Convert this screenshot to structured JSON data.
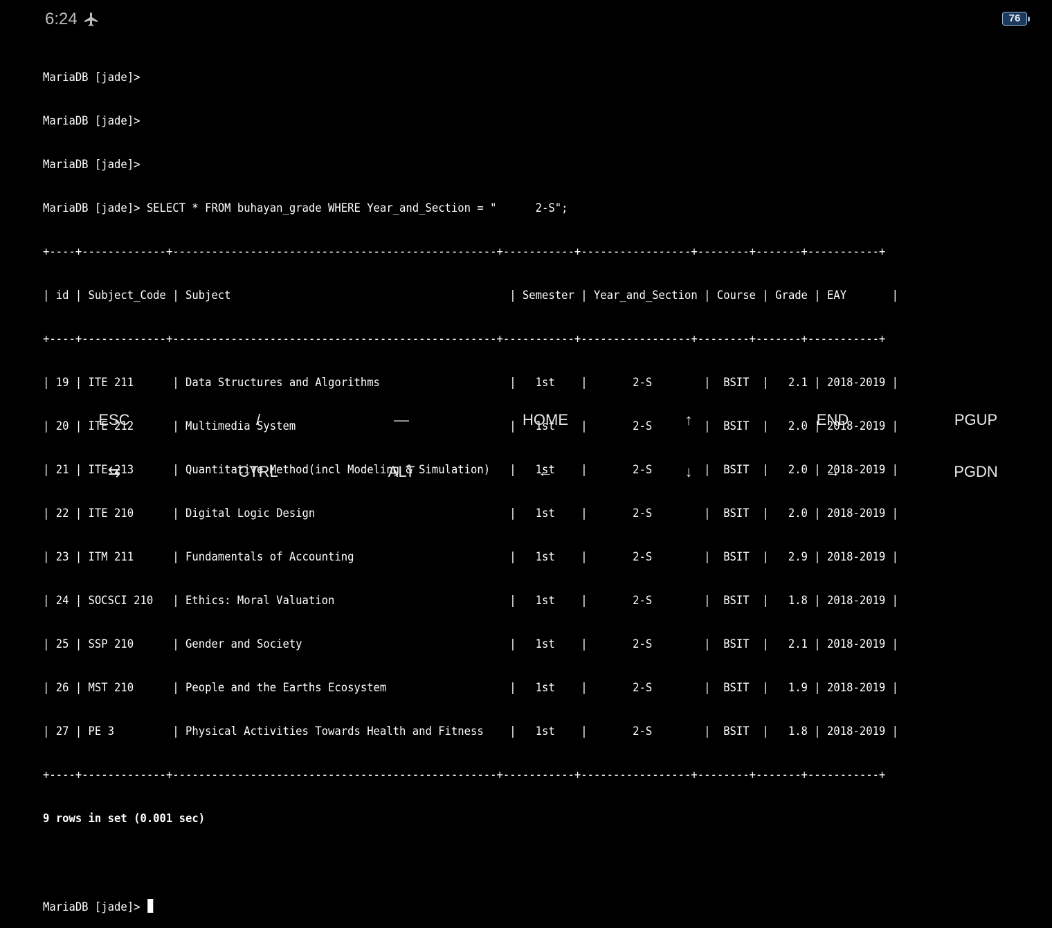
{
  "status": {
    "time": "6:24",
    "battery": "76",
    "airplane_icon": "airplane-icon"
  },
  "terminal": {
    "prompts": [
      "MariaDB [jade]>",
      "MariaDB [jade]>",
      "MariaDB [jade]>"
    ],
    "query_line": "MariaDB [jade]> SELECT * FROM buhayan_grade WHERE Year_and_Section = \"      2-S\";",
    "border": "+----+-------------+--------------------------------------------------+-----------+-----------------+--------+-------+-----------+",
    "header_row": "| id | Subject_Code | Subject                                           | Semester | Year_and_Section | Course | Grade | EAY       |",
    "columns": [
      "id",
      "Subject_Code",
      "Subject",
      "Semester",
      "Year_and_Section",
      "Course",
      "Grade",
      "EAY"
    ],
    "rows": [
      "| 19 | ITE 211      | Data Structures and Algorithms                    |   1st    |       2-S        |  BSIT  |   2.1 | 2018-2019 |",
      "| 20 | ITE 212      | Multimedia System                                 |   1st    |       2-S        |  BSIT  |   2.0 | 2018-2019 |",
      "| 21 | ITE 213      | Quantitative Method(incl Modeling & Simulation)   |   1st    |       2-S        |  BSIT  |   2.0 | 2018-2019 |",
      "| 22 | ITE 210      | Digital Logic Design                              |   1st    |       2-S        |  BSIT  |   2.0 | 2018-2019 |",
      "| 23 | ITM 211      | Fundamentals of Accounting                        |   1st    |       2-S        |  BSIT  |   2.9 | 2018-2019 |",
      "| 24 | SOCSCI 210   | Ethics: Moral Valuation                           |   1st    |       2-S        |  BSIT  |   1.8 | 2018-2019 |",
      "| 25 | SSP 210      | Gender and Society                                |   1st    |       2-S        |  BSIT  |   2.1 | 2018-2019 |",
      "| 26 | MST 210      | People and the Earths Ecosystem                   |   1st    |       2-S        |  BSIT  |   1.9 | 2018-2019 |",
      "| 27 | PE 3         | Physical Activities Towards Health and Fitness    |   1st    |       2-S        |  BSIT  |   1.8 | 2018-2019 |"
    ],
    "summary": "9 rows in set (0.001 sec)",
    "final_prompt": "MariaDB [jade]> "
  },
  "keys": {
    "row1": [
      "ESC",
      "/",
      "—",
      "HOME",
      "↑",
      "END",
      "PGUP"
    ],
    "row2": [
      "⇆",
      "CTRL",
      "ALT",
      "←",
      "↓",
      "→",
      "PGDN"
    ]
  }
}
